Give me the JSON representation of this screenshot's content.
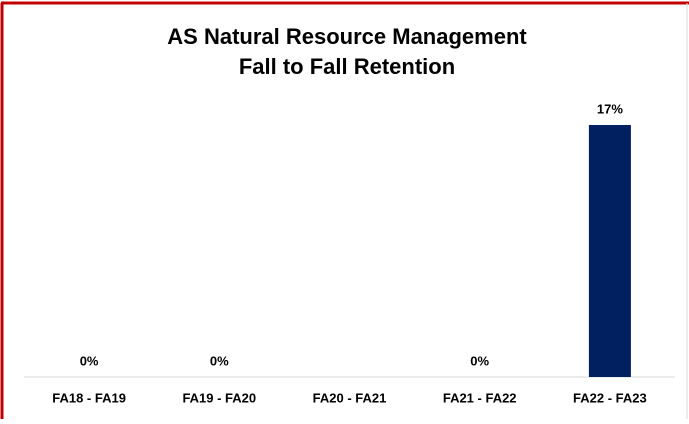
{
  "chart_data": {
    "type": "bar",
    "title": [
      "AS Natural Resource Management",
      "Fall to Fall Retention"
    ],
    "categories": [
      "FA18 - FA19",
      "FA19 - FA20",
      "FA20 - FA21",
      "FA21 - FA22",
      "FA22 - FA23"
    ],
    "values": [
      0,
      0,
      null,
      0,
      17
    ],
    "value_labels": [
      "0%",
      "0%",
      null,
      "0%",
      "17%"
    ],
    "color": "#002060"
  }
}
